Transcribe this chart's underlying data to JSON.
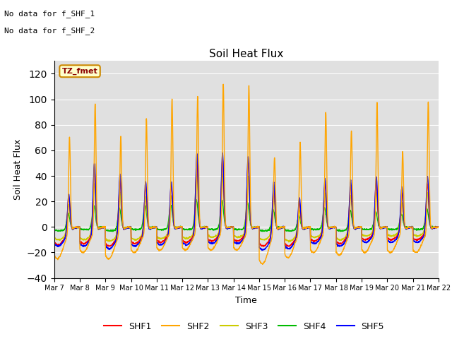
{
  "title": "Soil Heat Flux",
  "xlabel": "Time",
  "ylabel": "Soil Heat Flux",
  "no_data_text_1": "No data for f_SHF_1",
  "no_data_text_2": "No data for f_SHF_2",
  "legend_label": "TZ_fmet",
  "series_names": [
    "SHF1",
    "SHF2",
    "SHF3",
    "SHF4",
    "SHF5"
  ],
  "series_colors": [
    "red",
    "orange",
    "yellow",
    "#00cc00",
    "blue"
  ],
  "ylim": [
    -40,
    130
  ],
  "yticks": [
    -40,
    -20,
    0,
    20,
    40,
    60,
    80,
    100,
    120
  ],
  "background_color": "#e0e0e0",
  "days": 15,
  "start_day": 7,
  "points_per_day": 144,
  "shf2_peaks": [
    74,
    100,
    75,
    88,
    103,
    105,
    115,
    113,
    59,
    70,
    93,
    79,
    101,
    62,
    101
  ],
  "shf5_peaks": [
    30,
    55,
    47,
    40,
    40,
    62,
    62,
    59,
    41,
    28,
    42,
    41,
    43,
    35,
    43
  ],
  "shf1_peaks": [
    28,
    50,
    42,
    36,
    36,
    56,
    56,
    54,
    36,
    24,
    37,
    37,
    38,
    30,
    37
  ],
  "shf3_peaks": [
    22,
    38,
    32,
    28,
    28,
    45,
    45,
    43,
    29,
    18,
    30,
    29,
    30,
    22,
    30
  ],
  "shf4_peaks": [
    12,
    18,
    16,
    18,
    18,
    22,
    22,
    20,
    15,
    10,
    16,
    15,
    13,
    11,
    15
  ],
  "shf2_troughs": [
    -25,
    -20,
    -25,
    -20,
    -18,
    -18,
    -18,
    -18,
    -29,
    -24,
    -20,
    -22,
    -20,
    -20,
    -20
  ],
  "shf5_troughs": [
    -15,
    -15,
    -17,
    -15,
    -14,
    -14,
    -13,
    -13,
    -18,
    -17,
    -13,
    -15,
    -12,
    -12,
    -12
  ],
  "shf1_troughs": [
    -14,
    -13,
    -15,
    -13,
    -12,
    -12,
    -11,
    -11,
    -15,
    -15,
    -11,
    -13,
    -10,
    -10,
    -10
  ],
  "shf3_troughs": [
    -10,
    -10,
    -11,
    -10,
    -9,
    -9,
    -8,
    -8,
    -10,
    -11,
    -8,
    -10,
    -7,
    -7,
    -7
  ],
  "shf4_troughs": [
    -3,
    -2,
    -3,
    -2,
    -2,
    -2,
    -2,
    -2,
    -3,
    -3,
    -2,
    -3,
    -2,
    -2,
    -2
  ]
}
